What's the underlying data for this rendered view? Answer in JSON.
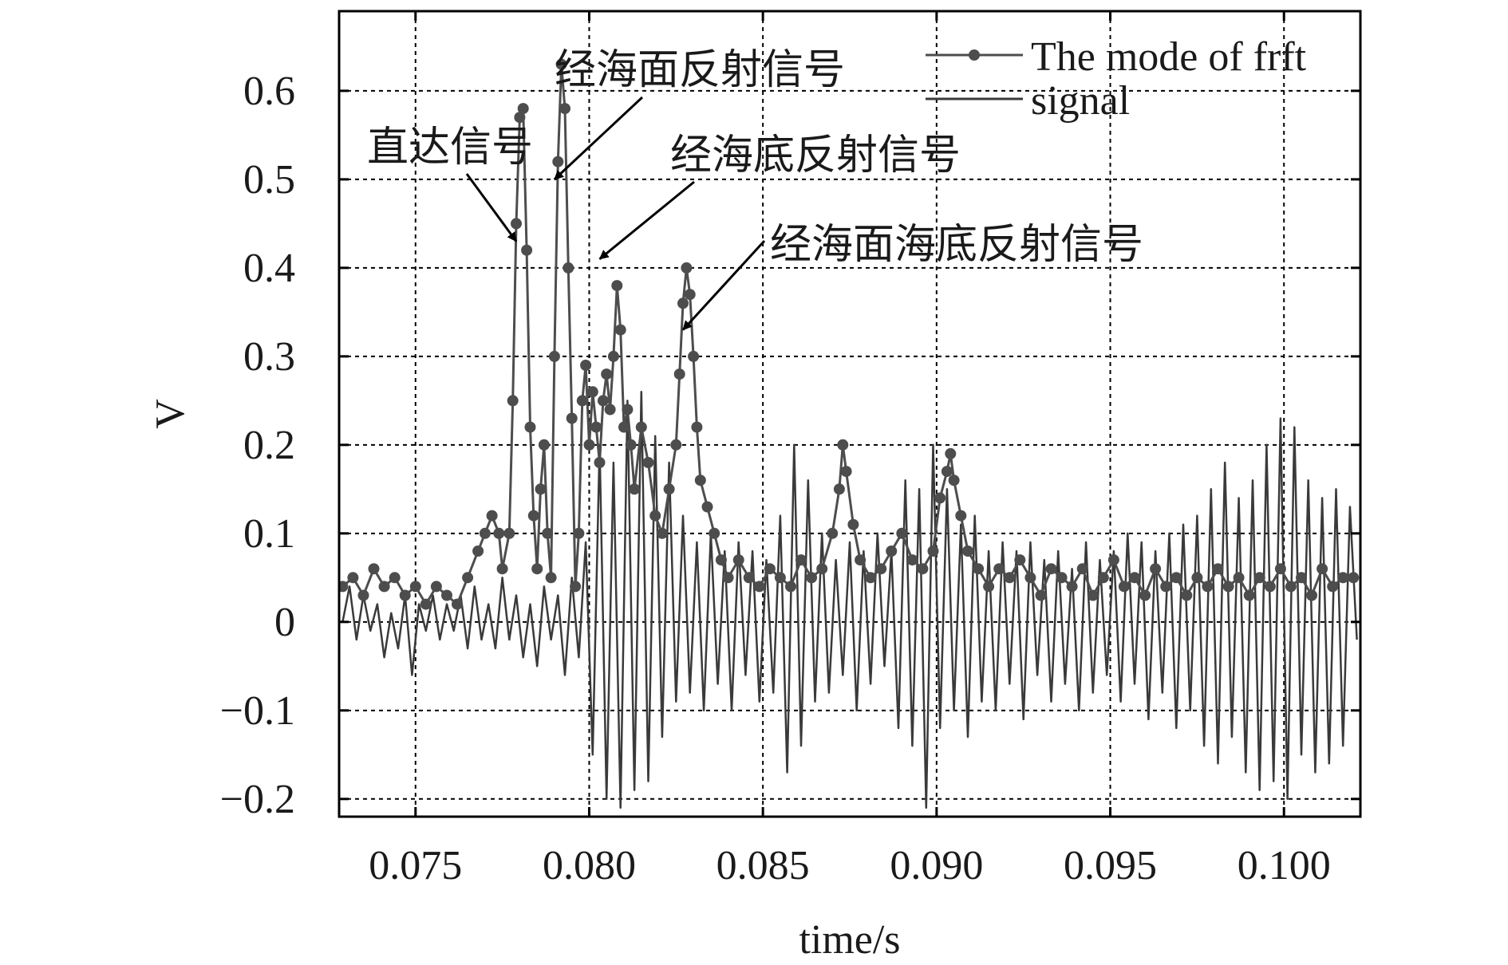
{
  "chart_data": {
    "type": "line",
    "title": "",
    "xlabel": "time/s",
    "ylabel": "V",
    "xlim": [
      0.0728,
      0.1022
    ],
    "ylim": [
      -0.22,
      0.69
    ],
    "xticks": [
      0.075,
      0.08,
      0.085,
      0.09,
      0.095,
      0.1
    ],
    "xtick_labels": [
      "0.075",
      "0.080",
      "0.085",
      "0.090",
      "0.095",
      "0.100"
    ],
    "yticks": [
      -0.2,
      -0.1,
      0,
      0.1,
      0.2,
      0.3,
      0.4,
      0.5,
      0.6
    ],
    "ytick_labels": [
      "−0.2",
      "−0.1",
      "0",
      "0.1",
      "0.2",
      "0.3",
      "0.4",
      "0.5",
      "0.6"
    ],
    "grid": true,
    "legend_position": "top-right",
    "series": [
      {
        "name": "The mode of frft",
        "style": "line-with-markers",
        "color": "#4d4d4d",
        "points": [
          [
            0.0729,
            0.04
          ],
          [
            0.0732,
            0.05
          ],
          [
            0.0735,
            0.03
          ],
          [
            0.0738,
            0.06
          ],
          [
            0.0741,
            0.04
          ],
          [
            0.0744,
            0.05
          ],
          [
            0.0747,
            0.03
          ],
          [
            0.075,
            0.04
          ],
          [
            0.0753,
            0.02
          ],
          [
            0.0756,
            0.04
          ],
          [
            0.0759,
            0.03
          ],
          [
            0.0762,
            0.02
          ],
          [
            0.0765,
            0.05
          ],
          [
            0.0768,
            0.08
          ],
          [
            0.077,
            0.1
          ],
          [
            0.0772,
            0.12
          ],
          [
            0.0774,
            0.1
          ],
          [
            0.0775,
            0.06
          ],
          [
            0.0777,
            0.1
          ],
          [
            0.0778,
            0.25
          ],
          [
            0.0779,
            0.45
          ],
          [
            0.078,
            0.57
          ],
          [
            0.0781,
            0.58
          ],
          [
            0.0782,
            0.42
          ],
          [
            0.0783,
            0.22
          ],
          [
            0.0784,
            0.12
          ],
          [
            0.0785,
            0.06
          ],
          [
            0.0786,
            0.15
          ],
          [
            0.0787,
            0.2
          ],
          [
            0.0788,
            0.1
          ],
          [
            0.0789,
            0.05
          ],
          [
            0.079,
            0.3
          ],
          [
            0.0791,
            0.52
          ],
          [
            0.0792,
            0.63
          ],
          [
            0.0793,
            0.58
          ],
          [
            0.0794,
            0.4
          ],
          [
            0.0795,
            0.23
          ],
          [
            0.0796,
            0.04
          ],
          [
            0.0797,
            0.1
          ],
          [
            0.0798,
            0.25
          ],
          [
            0.0799,
            0.29
          ],
          [
            0.08,
            0.2
          ],
          [
            0.0801,
            0.26
          ],
          [
            0.0802,
            0.22
          ],
          [
            0.0803,
            0.18
          ],
          [
            0.0804,
            0.25
          ],
          [
            0.0805,
            0.28
          ],
          [
            0.0806,
            0.24
          ],
          [
            0.0807,
            0.3
          ],
          [
            0.0808,
            0.38
          ],
          [
            0.0809,
            0.33
          ],
          [
            0.081,
            0.22
          ],
          [
            0.0811,
            0.24
          ],
          [
            0.0812,
            0.2
          ],
          [
            0.0813,
            0.15
          ],
          [
            0.0815,
            0.22
          ],
          [
            0.0817,
            0.18
          ],
          [
            0.0819,
            0.12
          ],
          [
            0.0821,
            0.1
          ],
          [
            0.0823,
            0.15
          ],
          [
            0.0825,
            0.2
          ],
          [
            0.0826,
            0.28
          ],
          [
            0.0827,
            0.36
          ],
          [
            0.0828,
            0.4
          ],
          [
            0.0829,
            0.37
          ],
          [
            0.083,
            0.3
          ],
          [
            0.0831,
            0.22
          ],
          [
            0.0832,
            0.16
          ],
          [
            0.0834,
            0.13
          ],
          [
            0.0836,
            0.1
          ],
          [
            0.0838,
            0.07
          ],
          [
            0.084,
            0.05
          ],
          [
            0.0843,
            0.07
          ],
          [
            0.0846,
            0.05
          ],
          [
            0.0849,
            0.04
          ],
          [
            0.0852,
            0.06
          ],
          [
            0.0855,
            0.05
          ],
          [
            0.0858,
            0.04
          ],
          [
            0.0861,
            0.07
          ],
          [
            0.0864,
            0.05
          ],
          [
            0.0867,
            0.06
          ],
          [
            0.087,
            0.1
          ],
          [
            0.0872,
            0.15
          ],
          [
            0.0873,
            0.2
          ],
          [
            0.0874,
            0.17
          ],
          [
            0.0876,
            0.11
          ],
          [
            0.0878,
            0.07
          ],
          [
            0.0881,
            0.05
          ],
          [
            0.0884,
            0.06
          ],
          [
            0.0887,
            0.08
          ],
          [
            0.089,
            0.1
          ],
          [
            0.0893,
            0.07
          ],
          [
            0.0896,
            0.06
          ],
          [
            0.0899,
            0.08
          ],
          [
            0.0901,
            0.14
          ],
          [
            0.0903,
            0.17
          ],
          [
            0.0904,
            0.19
          ],
          [
            0.0905,
            0.16
          ],
          [
            0.0907,
            0.12
          ],
          [
            0.0909,
            0.08
          ],
          [
            0.0912,
            0.06
          ],
          [
            0.0915,
            0.04
          ],
          [
            0.0918,
            0.06
          ],
          [
            0.0921,
            0.05
          ],
          [
            0.0924,
            0.07
          ],
          [
            0.0927,
            0.05
          ],
          [
            0.093,
            0.03
          ],
          [
            0.0933,
            0.06
          ],
          [
            0.0936,
            0.05
          ],
          [
            0.0939,
            0.04
          ],
          [
            0.0942,
            0.06
          ],
          [
            0.0945,
            0.03
          ],
          [
            0.0948,
            0.05
          ],
          [
            0.0951,
            0.07
          ],
          [
            0.0954,
            0.04
          ],
          [
            0.0957,
            0.05
          ],
          [
            0.096,
            0.03
          ],
          [
            0.0963,
            0.06
          ],
          [
            0.0966,
            0.04
          ],
          [
            0.0969,
            0.05
          ],
          [
            0.0972,
            0.03
          ],
          [
            0.0975,
            0.05
          ],
          [
            0.0978,
            0.04
          ],
          [
            0.0981,
            0.06
          ],
          [
            0.0984,
            0.04
          ],
          [
            0.0987,
            0.05
          ],
          [
            0.099,
            0.03
          ],
          [
            0.0993,
            0.05
          ],
          [
            0.0996,
            0.04
          ],
          [
            0.0999,
            0.06
          ],
          [
            0.1002,
            0.04
          ],
          [
            0.1005,
            0.05
          ],
          [
            0.1008,
            0.03
          ],
          [
            0.1011,
            0.06
          ],
          [
            0.1014,
            0.04
          ],
          [
            0.1017,
            0.05
          ],
          [
            0.102,
            0.05
          ]
        ]
      },
      {
        "name": "signal",
        "style": "line",
        "color": "#3a3a3a",
        "points": [
          [
            0.0729,
            0.0
          ],
          [
            0.0731,
            0.04
          ],
          [
            0.0733,
            -0.02
          ],
          [
            0.0735,
            0.03
          ],
          [
            0.0737,
            -0.01
          ],
          [
            0.0739,
            0.02
          ],
          [
            0.0741,
            -0.04
          ],
          [
            0.0743,
            0.01
          ],
          [
            0.0745,
            -0.03
          ],
          [
            0.0747,
            0.03
          ],
          [
            0.0749,
            -0.06
          ],
          [
            0.0751,
            0.02
          ],
          [
            0.0753,
            -0.01
          ],
          [
            0.0755,
            0.03
          ],
          [
            0.0757,
            -0.02
          ],
          [
            0.0759,
            0.02
          ],
          [
            0.0761,
            -0.01
          ],
          [
            0.0763,
            0.03
          ],
          [
            0.0765,
            -0.03
          ],
          [
            0.0767,
            0.04
          ],
          [
            0.0769,
            -0.02
          ],
          [
            0.0771,
            0.02
          ],
          [
            0.0773,
            -0.03
          ],
          [
            0.0775,
            0.05
          ],
          [
            0.0777,
            -0.02
          ],
          [
            0.0779,
            0.03
          ],
          [
            0.0781,
            -0.04
          ],
          [
            0.0783,
            0.02
          ],
          [
            0.0785,
            -0.05
          ],
          [
            0.0787,
            0.04
          ],
          [
            0.0789,
            -0.02
          ],
          [
            0.0791,
            0.03
          ],
          [
            0.0793,
            -0.06
          ],
          [
            0.0795,
            0.05
          ],
          [
            0.0797,
            -0.04
          ],
          [
            0.0799,
            0.09
          ],
          [
            0.0801,
            -0.15
          ],
          [
            0.0803,
            0.2
          ],
          [
            0.0805,
            -0.2
          ],
          [
            0.0807,
            0.18
          ],
          [
            0.0809,
            -0.21
          ],
          [
            0.0811,
            0.25
          ],
          [
            0.0813,
            -0.19
          ],
          [
            0.0815,
            0.26
          ],
          [
            0.0817,
            -0.18
          ],
          [
            0.0819,
            0.21
          ],
          [
            0.0821,
            -0.13
          ],
          [
            0.0823,
            0.18
          ],
          [
            0.0825,
            -0.09
          ],
          [
            0.0827,
            0.12
          ],
          [
            0.0829,
            -0.08
          ],
          [
            0.0831,
            0.09
          ],
          [
            0.0833,
            -0.1
          ],
          [
            0.0835,
            0.1
          ],
          [
            0.0837,
            -0.07
          ],
          [
            0.0839,
            0.08
          ],
          [
            0.0841,
            -0.1
          ],
          [
            0.0843,
            0.09
          ],
          [
            0.0845,
            -0.06
          ],
          [
            0.0847,
            0.08
          ],
          [
            0.0849,
            -0.09
          ],
          [
            0.0851,
            0.07
          ],
          [
            0.0853,
            -0.08
          ],
          [
            0.0855,
            0.12
          ],
          [
            0.0857,
            -0.17
          ],
          [
            0.0859,
            0.2
          ],
          [
            0.0861,
            -0.14
          ],
          [
            0.0863,
            0.16
          ],
          [
            0.0865,
            -0.09
          ],
          [
            0.0867,
            0.1
          ],
          [
            0.0869,
            -0.08
          ],
          [
            0.0871,
            0.07
          ],
          [
            0.0873,
            -0.06
          ],
          [
            0.0875,
            0.09
          ],
          [
            0.0877,
            -0.1
          ],
          [
            0.0879,
            0.08
          ],
          [
            0.0881,
            -0.07
          ],
          [
            0.0883,
            0.1
          ],
          [
            0.0885,
            -0.05
          ],
          [
            0.0887,
            0.08
          ],
          [
            0.0889,
            -0.12
          ],
          [
            0.0891,
            0.16
          ],
          [
            0.0893,
            -0.14
          ],
          [
            0.0895,
            0.15
          ],
          [
            0.0897,
            -0.21
          ],
          [
            0.0899,
            0.2
          ],
          [
            0.0901,
            -0.12
          ],
          [
            0.0903,
            0.15
          ],
          [
            0.0905,
            -0.1
          ],
          [
            0.0907,
            0.11
          ],
          [
            0.0909,
            -0.13
          ],
          [
            0.0911,
            0.12
          ],
          [
            0.0913,
            -0.09
          ],
          [
            0.0915,
            0.08
          ],
          [
            0.0917,
            -0.1
          ],
          [
            0.0919,
            0.09
          ],
          [
            0.0921,
            -0.07
          ],
          [
            0.0923,
            0.08
          ],
          [
            0.0925,
            -0.11
          ],
          [
            0.0927,
            0.09
          ],
          [
            0.0929,
            -0.06
          ],
          [
            0.0931,
            0.07
          ],
          [
            0.0933,
            -0.09
          ],
          [
            0.0935,
            0.08
          ],
          [
            0.0937,
            -0.07
          ],
          [
            0.0939,
            0.06
          ],
          [
            0.0941,
            -0.1
          ],
          [
            0.0943,
            0.09
          ],
          [
            0.0945,
            -0.08
          ],
          [
            0.0947,
            0.07
          ],
          [
            0.0949,
            -0.06
          ],
          [
            0.0951,
            0.08
          ],
          [
            0.0953,
            -0.09
          ],
          [
            0.0955,
            0.1
          ],
          [
            0.0957,
            -0.07
          ],
          [
            0.0959,
            0.09
          ],
          [
            0.0961,
            -0.11
          ],
          [
            0.0963,
            0.08
          ],
          [
            0.0965,
            -0.08
          ],
          [
            0.0967,
            0.1
          ],
          [
            0.0969,
            -0.12
          ],
          [
            0.0971,
            0.11
          ],
          [
            0.0973,
            -0.1
          ],
          [
            0.0975,
            0.12
          ],
          [
            0.0977,
            -0.14
          ],
          [
            0.0979,
            0.15
          ],
          [
            0.0981,
            -0.16
          ],
          [
            0.0983,
            0.18
          ],
          [
            0.0985,
            -0.13
          ],
          [
            0.0987,
            0.14
          ],
          [
            0.0989,
            -0.17
          ],
          [
            0.0991,
            0.16
          ],
          [
            0.0993,
            -0.19
          ],
          [
            0.0995,
            0.2
          ],
          [
            0.0997,
            -0.18
          ],
          [
            0.0999,
            0.23
          ],
          [
            0.1001,
            -0.2
          ],
          [
            0.1003,
            0.22
          ],
          [
            0.1005,
            -0.15
          ],
          [
            0.1007,
            0.16
          ],
          [
            0.1009,
            -0.17
          ],
          [
            0.1011,
            0.14
          ],
          [
            0.1013,
            -0.16
          ],
          [
            0.1015,
            0.15
          ],
          [
            0.1017,
            -0.14
          ],
          [
            0.1019,
            0.13
          ],
          [
            0.1021,
            -0.02
          ]
        ]
      }
    ],
    "annotations": [
      {
        "text": "直达信号",
        "target": [
          0.0779,
          0.43
        ]
      },
      {
        "text": "经海面反射信号",
        "target": [
          0.079,
          0.5
        ]
      },
      {
        "text": "经海底反射信号",
        "target": [
          0.0803,
          0.41
        ]
      },
      {
        "text": "经海面海底反射信号",
        "target": [
          0.0827,
          0.33
        ]
      }
    ]
  }
}
